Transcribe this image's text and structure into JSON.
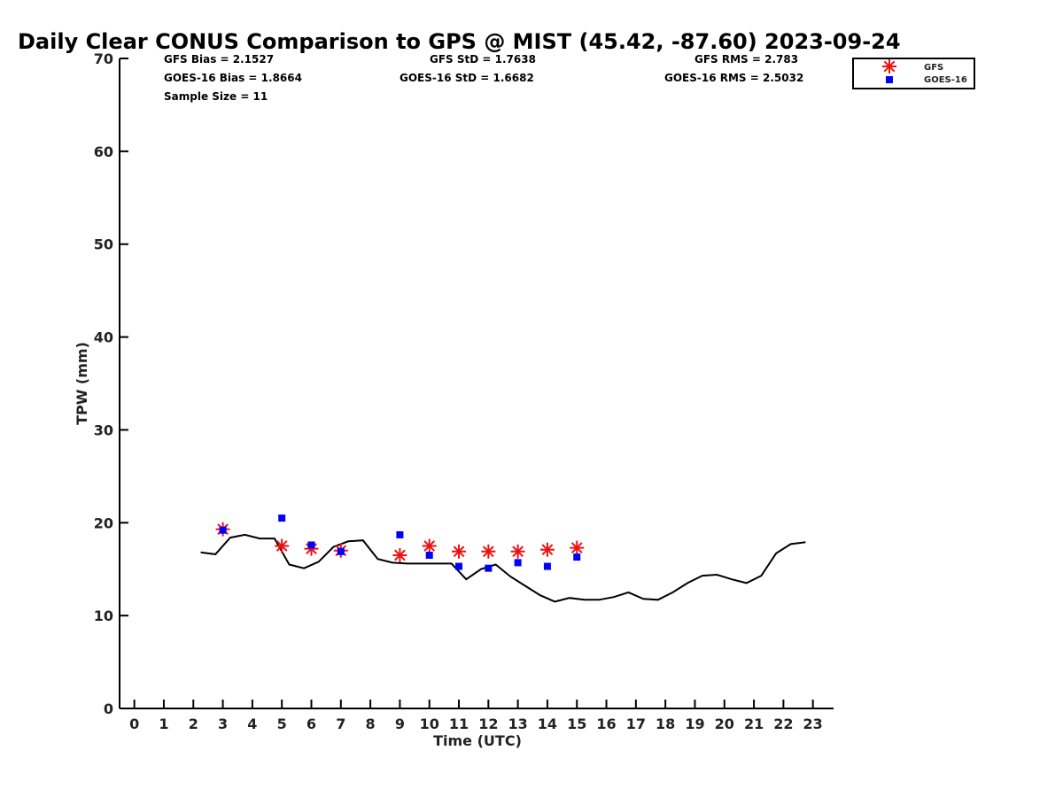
{
  "chart_data": {
    "type": "line",
    "title": "Daily Clear CONUS Comparison to GPS @ MIST (45.42, -87.60) 2023-09-24",
    "xlabel": "Time (UTC)",
    "ylabel": "TPW (mm)",
    "xlim": [
      -0.5,
      23.7
    ],
    "ylim": [
      0,
      70
    ],
    "xticks": [
      0,
      1,
      2,
      3,
      4,
      5,
      6,
      7,
      8,
      9,
      10,
      11,
      12,
      13,
      14,
      15,
      16,
      17,
      18,
      19,
      20,
      21,
      22,
      23
    ],
    "yticks": [
      0,
      10,
      20,
      30,
      40,
      50,
      60,
      70
    ],
    "grid": false,
    "legend_position": "top-right",
    "stats": {
      "gfs_bias": "GFS Bias = 2.1527",
      "goes_bias": "GOES-16 Bias = 1.8664",
      "sample_size": "Sample Size = 11",
      "gfs_std": "GFS StD = 1.7638",
      "goes_std": "GOES-16 StD = 1.6682",
      "gfs_rms": "GFS RMS = 2.783",
      "goes_rms": "GOES-16 RMS = 2.5032"
    },
    "series": [
      {
        "style": "line",
        "color": "#000000",
        "x": [
          2.25,
          2.75,
          3.25,
          3.75,
          4.25,
          4.75,
          5.25,
          5.75,
          6.25,
          6.75,
          7.25,
          7.75,
          8.25,
          8.75,
          9.25,
          9.75,
          10.25,
          10.75,
          11.25,
          11.75,
          12.25,
          12.75,
          13.25,
          13.75,
          14.25,
          14.75,
          15.25,
          15.75,
          16.25,
          16.75,
          17.25,
          17.75,
          18.25,
          18.75,
          19.25,
          19.75,
          20.25,
          20.75,
          21.25,
          21.75,
          22.25,
          22.75
        ],
        "y": [
          16.8,
          16.6,
          18.4,
          18.7,
          18.3,
          18.3,
          15.5,
          15.1,
          15.8,
          17.4,
          18.0,
          18.1,
          16.1,
          15.7,
          15.6,
          15.6,
          15.6,
          15.6,
          13.9,
          15.0,
          15.5,
          14.2,
          13.2,
          12.2,
          11.5,
          11.9,
          11.7,
          11.7,
          12.0,
          12.5,
          11.8,
          11.7,
          12.5,
          13.5,
          14.3,
          14.4,
          13.9,
          13.5,
          14.3,
          16.7,
          17.7,
          17.9
        ]
      },
      {
        "name": "GFS",
        "style": "asterisk",
        "color": "#ee1111",
        "x": [
          3,
          5,
          6,
          7,
          9,
          10,
          11,
          12,
          13,
          14,
          15
        ],
        "y": [
          19.3,
          17.5,
          17.2,
          17.0,
          16.5,
          17.5,
          16.9,
          16.9,
          16.9,
          17.1,
          17.3
        ]
      },
      {
        "name": "GOES-16",
        "style": "square",
        "color": "#0000ff",
        "x": [
          3,
          5,
          6,
          7,
          9,
          10,
          11,
          12,
          13,
          14,
          15
        ],
        "y": [
          19.2,
          20.5,
          17.6,
          16.9,
          18.7,
          16.5,
          15.3,
          15.1,
          15.7,
          15.3,
          16.3
        ]
      }
    ]
  }
}
